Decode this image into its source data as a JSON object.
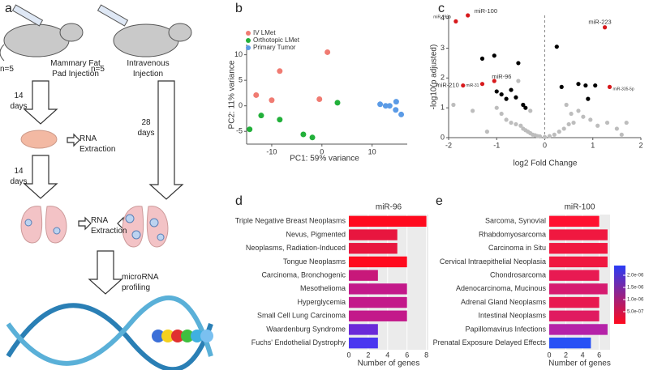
{
  "panel_letters": [
    "a",
    "b",
    "c",
    "d",
    "e"
  ],
  "panel_a": {
    "mouse_left_n": "n=5",
    "mouse_left_label": "Mammary Fat Pad Injection",
    "mouse_right_n": "n=5",
    "mouse_right_label": "Intravenous Injection",
    "step1_time": "14 days",
    "step1_label": "RNA Extraction",
    "step2_time": "14 days",
    "iv_time": "28 days",
    "step2_label": "RNA Extraction",
    "final_label": "microRNA profiling"
  },
  "chart_data": [
    {
      "type": "scatter",
      "xlabel": "PC1: 59% variance",
      "ylabel": "PC2: 11% variance",
      "xlim": [
        -15,
        17
      ],
      "ylim": [
        -7.5,
        12
      ],
      "xticks": [
        -10,
        0,
        10
      ],
      "yticks": [
        -5,
        0,
        5,
        10
      ],
      "legend": "top-left",
      "series": [
        {
          "name": "IV LMet",
          "color": "#f07b72",
          "x": [
            -13.1,
            -10,
            -8.4,
            -0.5,
            1.1
          ],
          "values": [
            2.1,
            1.1,
            6.8,
            1.3,
            10.5
          ]
        },
        {
          "name": "Orthotopic LMet",
          "color": "#22b03a",
          "x": [
            -14.4,
            -12.1,
            -8.4,
            -3.7,
            -1.9,
            3.1
          ],
          "values": [
            -4.6,
            -1.9,
            -2.7,
            -5.6,
            -6.2,
            0.6
          ]
        },
        {
          "name": "Primary Tumor",
          "color": "#5b9be6",
          "x": [
            11.6,
            12.7,
            13.5,
            14.8,
            14.7,
            15.8
          ],
          "values": [
            0.3,
            0,
            0,
            0.8,
            -0.8,
            -1.7
          ]
        }
      ]
    },
    {
      "type": "scatter",
      "xlabel": "log2 Fold Change",
      "ylabel": "-log10(p adjusted)",
      "xlim": [
        -2,
        2
      ],
      "ylim": [
        0,
        4.1
      ],
      "xticks": [
        -2,
        -1,
        0,
        1,
        2
      ],
      "yticks": [
        0,
        1,
        2,
        3,
        4
      ],
      "series": [
        {
          "color": "#bdbdbd",
          "x": [
            -1.0,
            -0.9,
            -0.8,
            -0.7,
            -0.6,
            -0.5,
            -0.45,
            -0.4,
            -0.35,
            -0.3,
            -0.25,
            -0.2,
            -0.15,
            -0.1,
            0,
            0.1,
            0.2,
            0.3,
            0.4,
            0.5,
            0.55,
            0.6,
            0.7,
            0.8,
            0.95,
            1.1,
            1.3,
            1.5,
            1.7,
            -1.5,
            -1.2,
            -0.55,
            -0.3,
            0.45,
            -1.9,
            1.6
          ],
          "values": [
            1.0,
            0.8,
            0.6,
            0.5,
            0.45,
            0.4,
            0.3,
            0.25,
            0.2,
            0.15,
            0.1,
            0.08,
            0.05,
            0.04,
            0.02,
            0.05,
            0.1,
            0.2,
            0.3,
            0.45,
            0.8,
            0.5,
            0.9,
            0.7,
            0.6,
            0.4,
            0.5,
            0.3,
            0.5,
            0.9,
            0.2,
            1.9,
            0.9,
            1.1,
            1.1,
            0.1
          ]
        },
        {
          "color": "#000000",
          "x": [
            -1.3,
            -1.05,
            -1.0,
            -0.9,
            -0.8,
            -0.7,
            -0.6,
            -0.55,
            -0.45,
            -0.4,
            0.25,
            0.35,
            0.7,
            0.85,
            0.9,
            1.05
          ],
          "values": [
            2.65,
            2.75,
            1.55,
            1.45,
            1.3,
            1.6,
            1.35,
            2.5,
            1.1,
            1.0,
            3.05,
            1.7,
            1.8,
            1.75,
            1.3,
            1.75
          ]
        },
        {
          "color": "#d7191c",
          "x": [
            -1.6,
            -1.85,
            -1.7,
            -1.3,
            -1.05,
            1.25,
            1.35
          ],
          "values": [
            4.1,
            3.9,
            1.75,
            1.8,
            1.9,
            3.7,
            1.7
          ],
          "point_labels": [
            "miR-100",
            "miR-196b",
            "miR-210",
            "miR-31",
            "miR-96",
            "miR-223",
            "miR-335-5p"
          ]
        }
      ]
    },
    {
      "type": "barh",
      "title": "miR-96",
      "xlabel": "Number of genes",
      "xlim": [
        0,
        8.2
      ],
      "xticks": [
        0,
        2,
        4,
        6,
        8
      ],
      "categories": [
        "Triple Negative Breast Neoplasms",
        "Nevus, Pigmented",
        "Neoplasms, Radiation-Induced",
        "Tongue Neoplasms",
        "Carcinoma, Bronchogenic",
        "Mesothelioma",
        "Hyperglycemia",
        "Small Cell Lung Carcinoma",
        "Waardenburg Syndrome",
        "Fuchs' Endothelial Dystrophy"
      ],
      "values": [
        8,
        5,
        5,
        6,
        3,
        6,
        6,
        6,
        3,
        3
      ],
      "colors": [
        "#ff0a1e",
        "#e8163f",
        "#e8163f",
        "#ff0a1e",
        "#c8187a",
        "#c3198a",
        "#c3198a",
        "#c3198a",
        "#6a2ad8",
        "#4a36f0"
      ]
    },
    {
      "type": "barh",
      "title": "miR-100",
      "xlabel": "Number of genes",
      "xlim": [
        0,
        7.3
      ],
      "xticks": [
        0,
        2,
        4,
        6
      ],
      "categories": [
        "Sarcoma, Synovial",
        "Rhabdomyosarcoma",
        "Carcinoma in Situ",
        "Cervical Intraepithelial Neoplasia",
        "Chondrosarcoma",
        "Adenocarcinoma, Mucinous",
        "Adrenal Gland Neoplasms",
        "Intestinal Neoplasms",
        "Papillomavirus Infections",
        "Prenatal Exposure Delayed Effects"
      ],
      "values": [
        6,
        7,
        7,
        7,
        6,
        7,
        6,
        6,
        7,
        5
      ],
      "colors": [
        "#ff1030",
        "#f01840",
        "#f01840",
        "#f01840",
        "#e81a52",
        "#d61b70",
        "#e81a50",
        "#e01b60",
        "#b522a8",
        "#2850f5"
      ],
      "colorbar": {
        "lim": [
          0,
          2.4e-06
        ],
        "colors": [
          "#ff0a1e",
          "#2a3cf5"
        ],
        "ticks": [
          {
            "value": 2e-06,
            "label": "2.0e-06"
          },
          {
            "value": 1.5e-06,
            "label": "1.5e-06"
          },
          {
            "value": 1e-06,
            "label": "1.0e-06"
          },
          {
            "value": 5e-07,
            "label": "5.0e-07"
          }
        ]
      }
    }
  ]
}
